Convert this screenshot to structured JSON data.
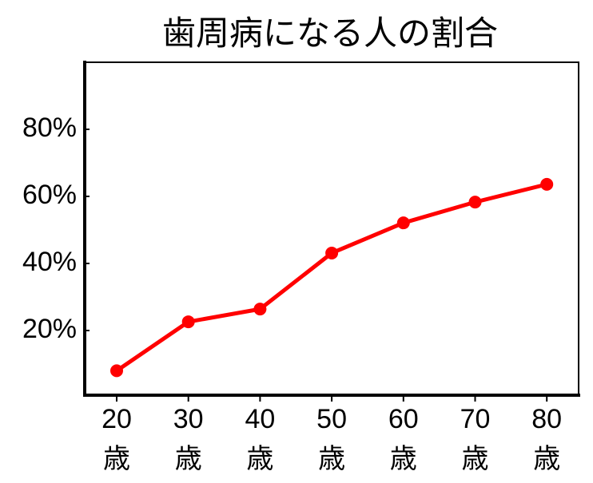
{
  "chart_data": {
    "type": "line",
    "title": "歯周病になる人の割合",
    "categories": [
      "20歳",
      "30歳",
      "40歳",
      "50歳",
      "60歳",
      "70歳",
      "80歳"
    ],
    "values": [
      8,
      22.6,
      26.4,
      43.1,
      52.1,
      58.3,
      63.6
    ],
    "color": "#ff0000",
    "ylim": [
      0,
      100
    ],
    "yticks": [
      {
        "value": 20,
        "label": "20%"
      },
      {
        "value": 40,
        "label": "40%"
      },
      {
        "value": 60,
        "label": "60%"
      },
      {
        "value": 80,
        "label": "80%"
      }
    ],
    "grid": false
  }
}
